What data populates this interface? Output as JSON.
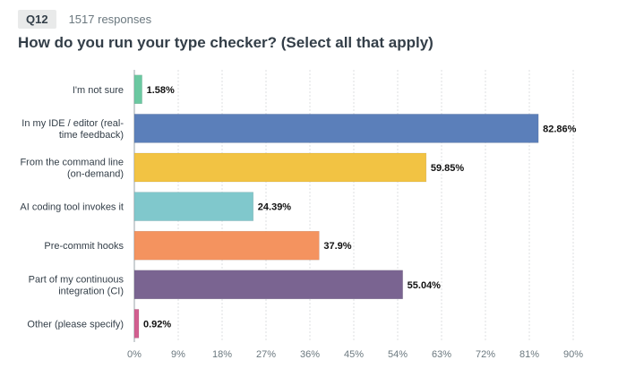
{
  "header": {
    "question_badge": "Q12",
    "responses": "1517 responses",
    "title": "How do you run your type checker? (Select all that apply)"
  },
  "chart_data": {
    "type": "bar",
    "orientation": "horizontal",
    "title": "How do you run your type checker? (Select all that apply)",
    "xlabel": "",
    "ylabel": "",
    "xlim": [
      0,
      90
    ],
    "x_unit": "%",
    "grid": true,
    "ticks": [
      "0%",
      "9%",
      "18%",
      "27%",
      "36%",
      "45%",
      "54%",
      "63%",
      "72%",
      "81%",
      "90%"
    ],
    "tick_values": [
      0,
      9,
      18,
      27,
      36,
      45,
      54,
      63,
      72,
      81,
      90
    ],
    "categories": [
      [
        "I'm not sure"
      ],
      [
        "In my IDE / editor (real-",
        "time feedback)"
      ],
      [
        "From the command line",
        "(on-demand)"
      ],
      [
        "AI coding tool invokes it"
      ],
      [
        "Pre-commit hooks"
      ],
      [
        "Part of my continuous",
        "integration (CI)"
      ],
      [
        "Other (please specify)"
      ]
    ],
    "values": [
      1.58,
      82.86,
      59.85,
      24.39,
      37.9,
      55.04,
      0.92
    ],
    "value_labels": [
      "1.58%",
      "82.86%",
      "59.85%",
      "24.39%",
      "37.9%",
      "55.04%",
      "0.92%"
    ],
    "colors": [
      "#6bc8a1",
      "#5b7fba",
      "#f2c343",
      "#80c8cc",
      "#f4935f",
      "#7a6491",
      "#d25f90"
    ]
  }
}
